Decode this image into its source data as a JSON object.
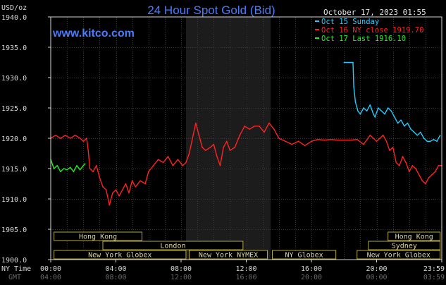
{
  "chart_data": {
    "type": "line",
    "title": "24 Hour Spot Gold (Bid)",
    "brand": "www.kitco.com",
    "timestamp": "October 17, 2023 01:55",
    "ylabel": "USD/oz",
    "ylim": [
      1900,
      1940
    ],
    "y_ticks": [
      "1940.0",
      "1935.0",
      "1930.0",
      "1925.0",
      "1920.0",
      "1915.0",
      "1910.0",
      "1905.0",
      "1900.0"
    ],
    "y_tick_values": [
      1940,
      1935,
      1930,
      1925,
      1920,
      1915,
      1910,
      1905,
      1900
    ],
    "xlim": [
      0,
      24
    ],
    "x_axis_title_ny": "NY Time",
    "x_axis_title_gmt": "GMT",
    "x_ticks_ny": [
      "00:00",
      "04:00",
      "08:00",
      "12:00",
      "16:00",
      "20:00",
      "23:59"
    ],
    "x_ticks_gmt": [
      "04:00",
      "08:00",
      "12:00",
      "16:00",
      "20:00",
      "00:00",
      "03:59"
    ],
    "x_tick_hours": [
      0,
      4,
      8,
      12,
      16,
      20,
      24
    ],
    "grid": true,
    "shaded_range": [
      8.3,
      13.5
    ],
    "legend_position": "top-right",
    "colors": {
      "background": "#000000",
      "plot": "#000000",
      "grid": "#3a3a3a",
      "axis": "#d8d8d8",
      "title": "#4a7cff",
      "brand": "#4a7cff",
      "shade": "#1c1c1c",
      "session_border": "#b8a840",
      "session_text": "#ddd6a0"
    },
    "legend": [
      {
        "label": "Oct 15 Sunday",
        "color": "#22ccff"
      },
      {
        "label": "Oct 16 NY close 1919.70",
        "color": "#ff2222"
      },
      {
        "label": "Oct 17 Last 1916.10",
        "color": "#22ee22"
      }
    ],
    "sessions": [
      {
        "name": "Hong Kong",
        "row": 0,
        "start": 0.2,
        "end": 5.6
      },
      {
        "name": "Hong Kong",
        "row": 0,
        "start": 20.7,
        "end": 23.9
      },
      {
        "name": "London",
        "row": 1,
        "start": 3.2,
        "end": 11.8
      },
      {
        "name": "Sydney",
        "row": 1,
        "start": 19.5,
        "end": 23.9
      },
      {
        "name": "New York Globex",
        "row": 2,
        "start": 0.2,
        "end": 8.3
      },
      {
        "name": "New York NYMEX",
        "row": 2,
        "start": 8.5,
        "end": 13.3
      },
      {
        "name": "NY Globex",
        "row": 2,
        "start": 13.6,
        "end": 17.5
      },
      {
        "name": "New York Globex",
        "row": 2,
        "start": 18.8,
        "end": 23.9
      }
    ],
    "series": [
      {
        "name": "Oct 15 Sunday",
        "color": "#22ccff",
        "x": [
          18.0,
          18.55,
          18.6,
          18.7,
          18.85,
          19.0,
          19.2,
          19.4,
          19.6,
          19.8,
          19.9,
          20.1,
          20.3,
          20.5,
          20.7,
          20.9,
          21.1,
          21.3,
          21.5,
          21.7,
          21.9,
          22.1,
          22.3,
          22.5,
          22.7,
          22.9,
          23.1,
          23.3,
          23.5,
          23.7,
          23.9
        ],
        "y": [
          1932.5,
          1932.5,
          1928.5,
          1926.0,
          1924.5,
          1924.0,
          1925.0,
          1924.5,
          1925.5,
          1924.0,
          1923.5,
          1925.0,
          1924.5,
          1924.0,
          1925.0,
          1924.5,
          1923.5,
          1922.5,
          1923.0,
          1922.0,
          1922.5,
          1921.5,
          1921.0,
          1920.5,
          1921.0,
          1920.0,
          1919.5,
          1919.5,
          1919.8,
          1919.5,
          1920.5
        ]
      },
      {
        "name": "Oct 16 NY close 1919.70",
        "color": "#ff2222",
        "x": [
          0.0,
          0.3,
          0.6,
          0.9,
          1.2,
          1.5,
          1.8,
          2.0,
          2.2,
          2.3,
          2.4,
          2.6,
          2.8,
          3.0,
          3.2,
          3.4,
          3.6,
          3.8,
          4.0,
          4.2,
          4.4,
          4.6,
          4.8,
          5.0,
          5.2,
          5.5,
          5.8,
          6.0,
          6.3,
          6.6,
          6.9,
          7.2,
          7.5,
          7.8,
          8.1,
          8.3,
          8.5,
          8.7,
          8.9,
          9.1,
          9.3,
          9.5,
          9.8,
          10.0,
          10.2,
          10.4,
          10.6,
          10.8,
          11.0,
          11.3,
          11.6,
          11.9,
          12.2,
          12.5,
          12.8,
          13.1,
          13.4,
          13.7,
          14.0,
          14.4,
          14.8,
          15.2,
          15.6,
          16.0,
          16.4,
          16.8,
          17.2,
          17.6,
          18.0,
          18.4,
          18.8,
          19.2,
          19.6,
          20.0,
          20.2,
          20.4,
          20.6,
          20.8,
          21.0,
          21.2,
          21.4,
          21.6,
          21.8,
          22.0,
          22.2,
          22.4,
          22.6,
          22.8,
          23.0,
          23.2,
          23.4,
          23.6,
          23.8,
          23.95
        ],
        "y": [
          1920.0,
          1920.5,
          1920.0,
          1920.5,
          1920.0,
          1920.5,
          1920.0,
          1919.5,
          1920.0,
          1918.0,
          1915.0,
          1914.5,
          1915.5,
          1913.5,
          1912.0,
          1911.5,
          1909.0,
          1911.0,
          1911.5,
          1910.5,
          1911.5,
          1912.5,
          1911.0,
          1913.0,
          1912.0,
          1913.0,
          1912.5,
          1914.5,
          1915.5,
          1916.5,
          1916.0,
          1917.0,
          1915.5,
          1916.5,
          1915.5,
          1916.0,
          1917.5,
          1920.0,
          1922.5,
          1920.5,
          1918.5,
          1918.0,
          1918.5,
          1919.0,
          1917.0,
          1915.5,
          1918.5,
          1919.5,
          1918.0,
          1918.5,
          1920.5,
          1922.0,
          1921.5,
          1922.0,
          1922.0,
          1921.0,
          1922.5,
          1921.5,
          1920.0,
          1919.5,
          1919.0,
          1919.5,
          1918.8,
          1919.5,
          1919.8,
          1919.7,
          1919.8,
          1919.7,
          1919.7,
          1919.7,
          1919.8,
          1919.0,
          1920.5,
          1919.5,
          1920.0,
          1920.5,
          1919.5,
          1918.0,
          1918.5,
          1916.0,
          1915.5,
          1917.0,
          1916.0,
          1914.5,
          1915.5,
          1915.0,
          1914.0,
          1913.0,
          1912.5,
          1913.5,
          1914.0,
          1914.5,
          1915.5,
          1915.5
        ]
      },
      {
        "name": "Oct 17 Last 1916.10",
        "color": "#22ee22",
        "x": [
          0.0,
          0.2,
          0.4,
          0.6,
          0.8,
          1.0,
          1.2,
          1.4,
          1.6,
          1.8,
          2.0,
          2.1
        ],
        "y": [
          1916.5,
          1915.0,
          1915.5,
          1914.5,
          1915.0,
          1914.8,
          1915.2,
          1914.5,
          1915.5,
          1914.8,
          1915.5,
          1915.8
        ]
      }
    ]
  }
}
